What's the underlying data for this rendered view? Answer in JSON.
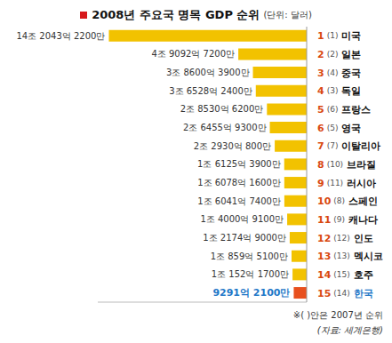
{
  "chart_data": {
    "type": "bar",
    "title": "2008년 주요국 명목 GDP 순위",
    "subtitle": "(단위: 달러)",
    "orientation": "horizontal",
    "data_labels": true,
    "tick_labels": "y",
    "grid": false,
    "categories": [
      "미국",
      "일본",
      "중국",
      "독일",
      "프랑스",
      "영국",
      "이탈리아",
      "브라질",
      "러시아",
      "스페인",
      "캐나다",
      "인도",
      "멕시코",
      "호주",
      "한국"
    ],
    "ranks": [
      1,
      2,
      3,
      4,
      5,
      6,
      7,
      8,
      9,
      10,
      11,
      12,
      13,
      14,
      15
    ],
    "ranks_2007": [
      "(1)",
      "(2)",
      "(4)",
      "(3)",
      "(6)",
      "(5)",
      "(7)",
      "(10)",
      "(11)",
      "(8)",
      "(9)",
      "(12)",
      "(13)",
      "(15)",
      "(14)"
    ],
    "values": [
      14204322000000,
      4909272000000,
      3860039000000,
      3652824000000,
      2853062000000,
      2645593000000,
      2293008000000,
      1612539000000,
      1607816000000,
      1604174000000,
      1400091000000,
      1217490000000,
      1085951000000,
      1015217000000,
      929121000000
    ],
    "value_labels": [
      "14조 2043억 2200만",
      "4조 9092억 7200만",
      "3조 8600억 3900만",
      "3조 6528억 2400만",
      "2조 8530억 6200만",
      "2조 6455억 9300만",
      "2조 2930억 800만",
      "1조 6125억 3900만",
      "1조 6078억 1600만",
      "1조 6041억 7400만",
      "1조 4000억 9100만",
      "1조 2174억 9000만",
      "1조 859억 5100만",
      "1조 152억 1700만",
      "9291억 2100만"
    ],
    "colors": [
      "#f2c200",
      "#f2c200",
      "#f2c200",
      "#f2c200",
      "#f2c200",
      "#f2c200",
      "#f2c200",
      "#f2c200",
      "#f2c200",
      "#f2c200",
      "#f2c200",
      "#f2c200",
      "#f2c200",
      "#f2c200",
      "#e8501e"
    ],
    "xlim": [
      0,
      15000000000000
    ],
    "annotations": [
      "※( )안은 2007년 순위",
      "(자료: 세계은행)"
    ]
  }
}
